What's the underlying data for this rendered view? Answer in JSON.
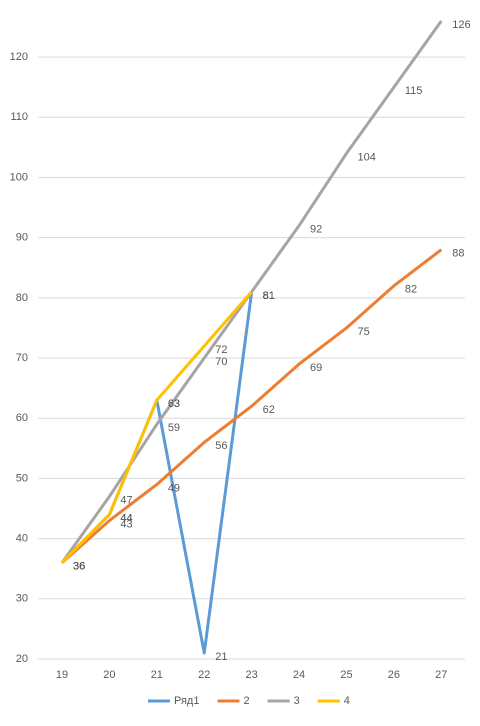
{
  "chart_data": {
    "type": "line",
    "categories": [
      "19",
      "20",
      "21",
      "22",
      "23",
      "24",
      "25",
      "26",
      "27"
    ],
    "series": [
      {
        "name": "Ряд1",
        "color": "#5b9bd5",
        "values": [
          36,
          44,
          63,
          21,
          81,
          null,
          null,
          null,
          null
        ]
      },
      {
        "name": "2",
        "color": "#ed7d31",
        "values": [
          36,
          43,
          49,
          56,
          62,
          69,
          75,
          82,
          88
        ]
      },
      {
        "name": "3",
        "color": "#a5a5a5",
        "values": [
          36,
          47,
          59,
          70,
          81,
          92,
          104,
          115,
          126
        ]
      },
      {
        "name": "4",
        "color": "#ffc000",
        "values": [
          36,
          44,
          63,
          72,
          81,
          null,
          null,
          null,
          null
        ]
      }
    ],
    "ylim": [
      20,
      126
    ],
    "yticks": [
      20,
      30,
      40,
      50,
      60,
      70,
      80,
      90,
      100,
      110,
      120
    ],
    "grid": true,
    "legend": "bottom"
  }
}
